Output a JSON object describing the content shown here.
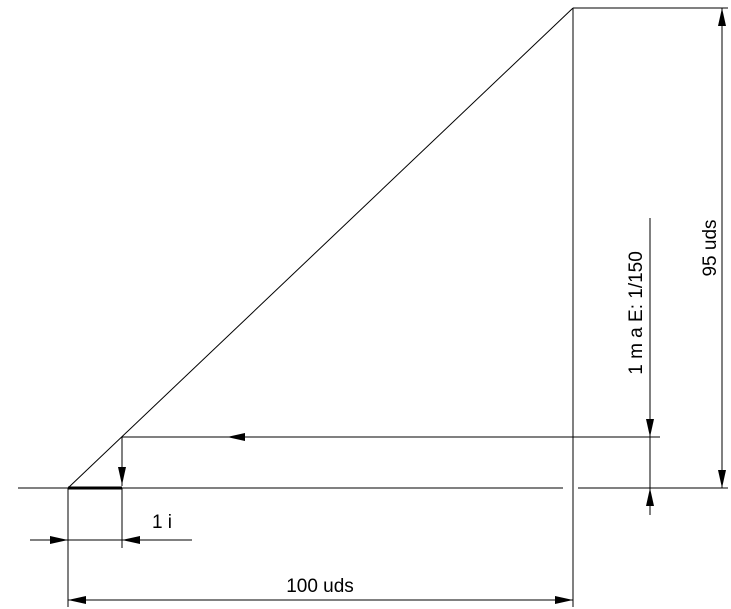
{
  "diagram": {
    "labels": {
      "horizontal_dimension": "100 uds",
      "vertical_dimension": "95 uds",
      "scale_note": "1 m a E: 1/150",
      "small_dimension": "1 i"
    },
    "colors": {
      "stroke": "#000000",
      "background": "#ffffff"
    }
  }
}
